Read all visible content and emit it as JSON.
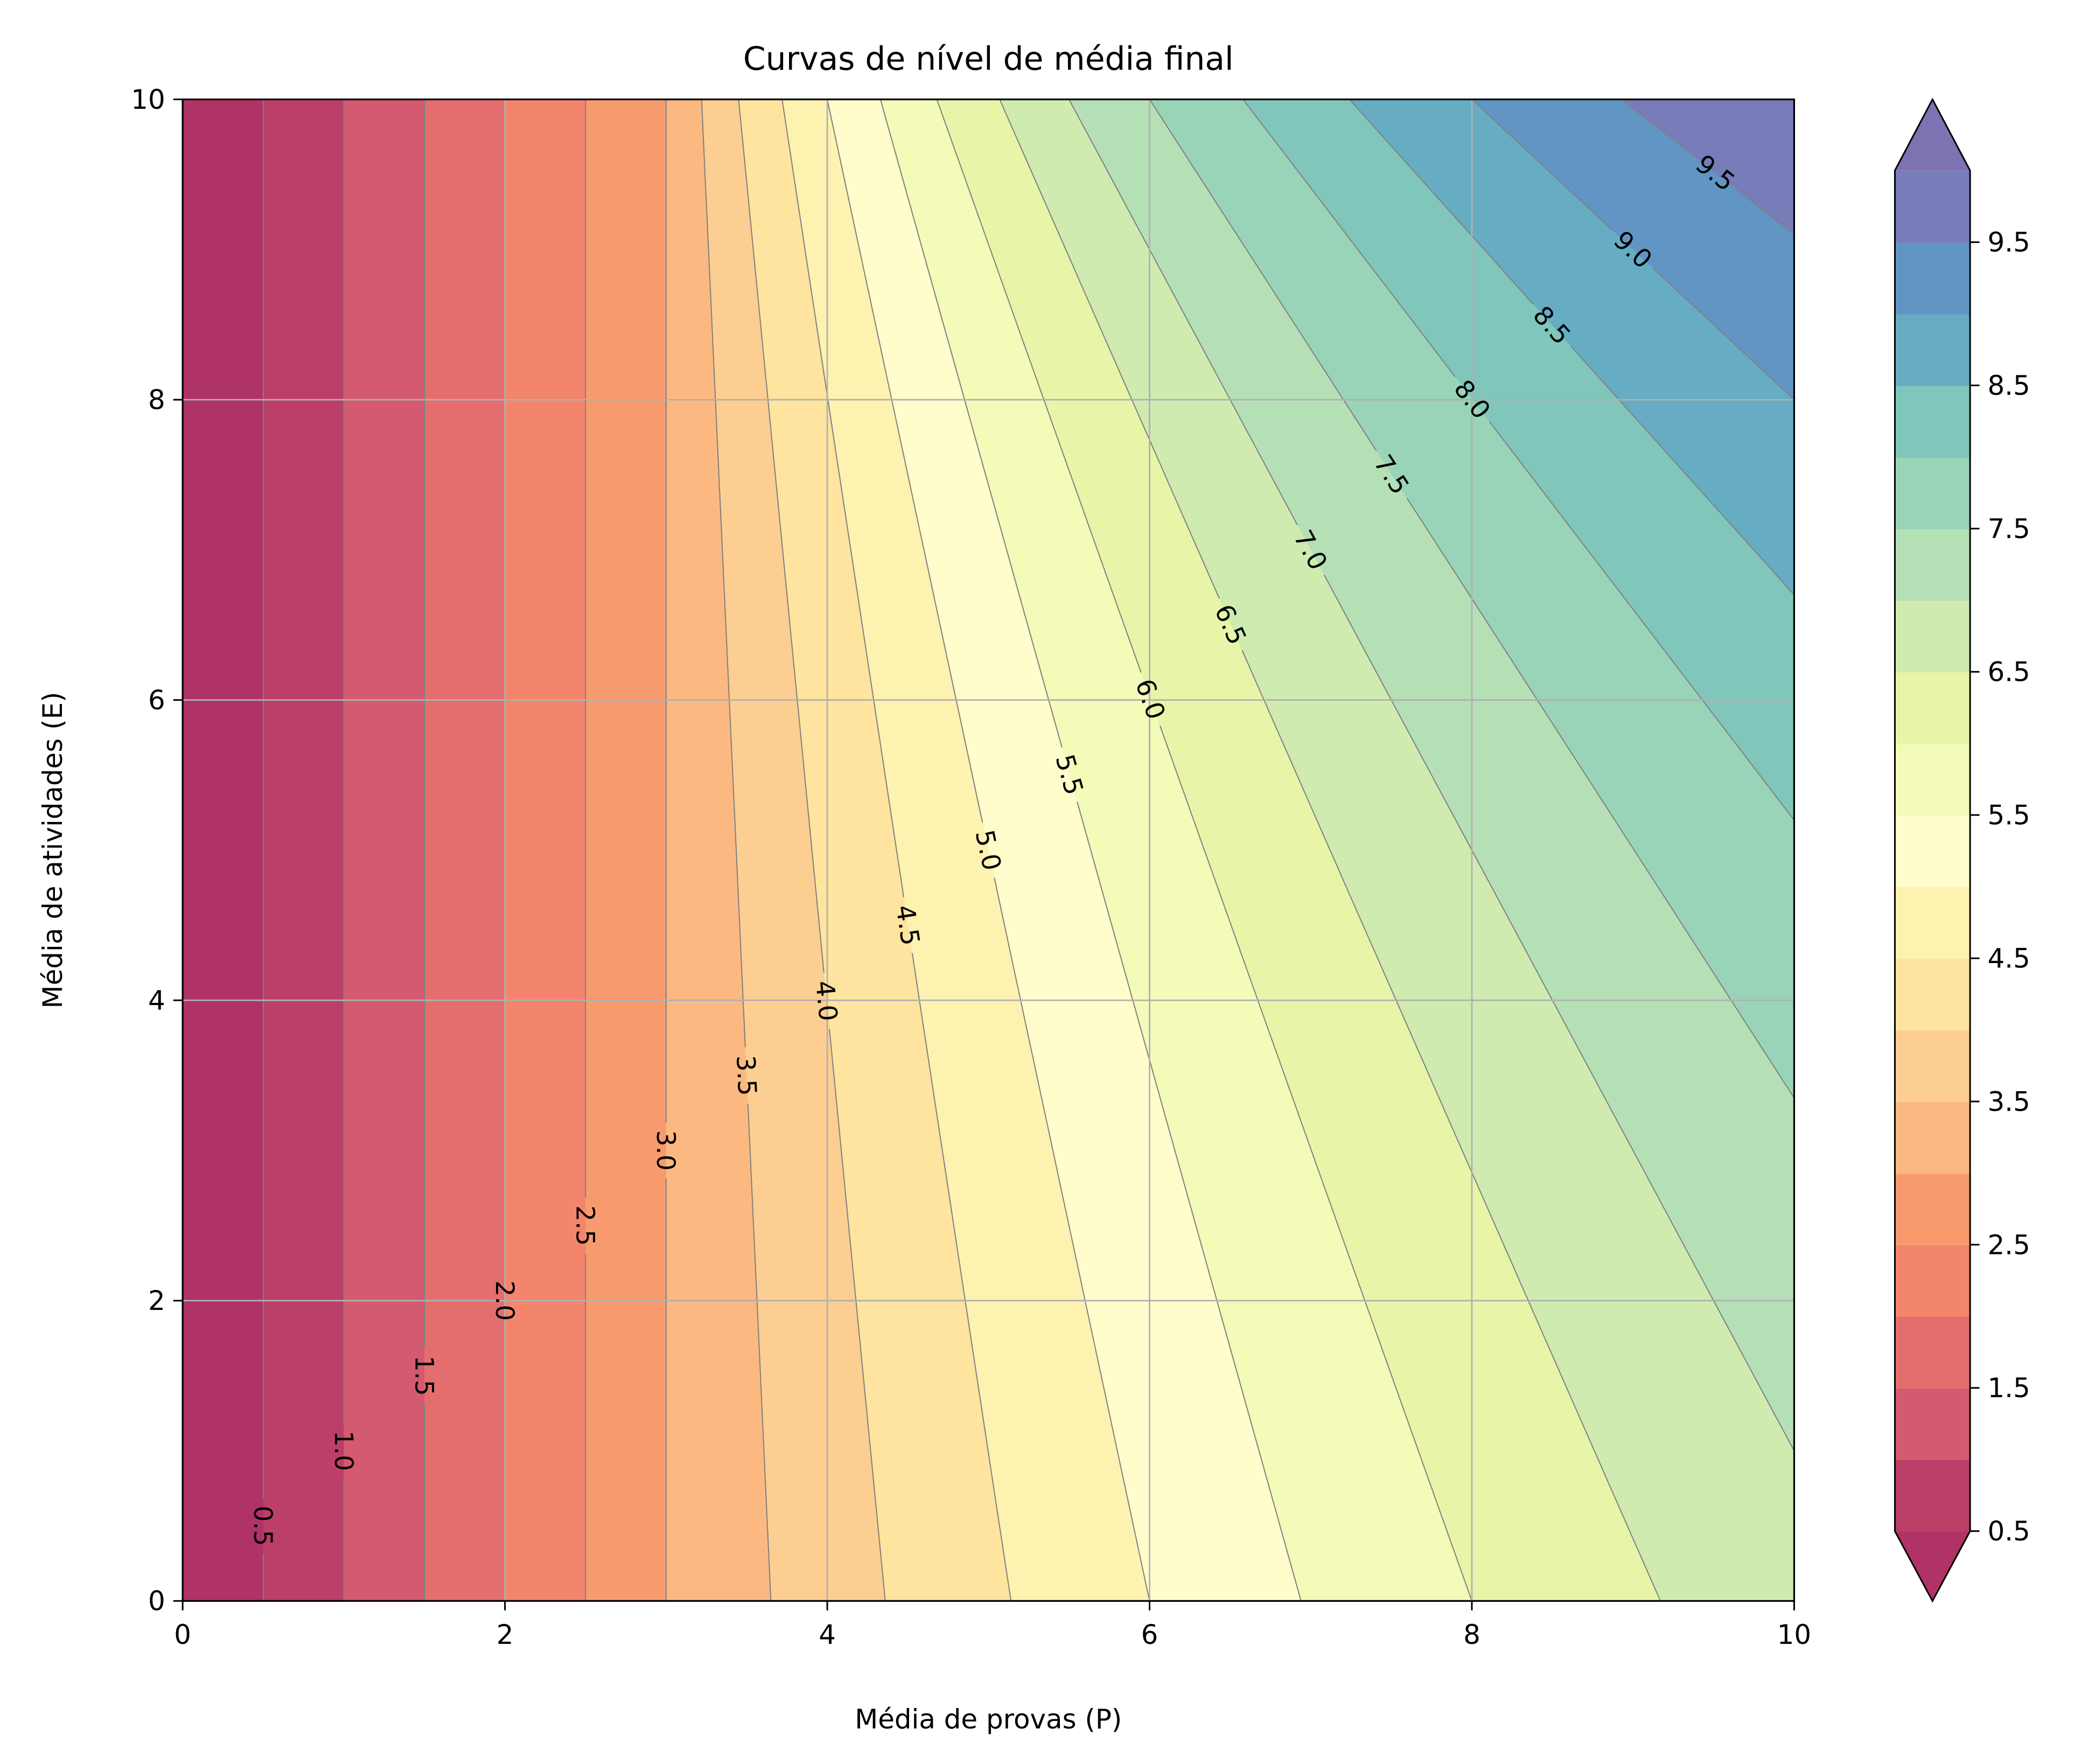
{
  "chart_data": {
    "type": "contour",
    "title": "Curvas de nível de média final",
    "xlabel": "Média de provas (P)",
    "ylabel": "Média de atividades (E)",
    "xlim": [
      0,
      10
    ],
    "ylim": [
      0,
      10
    ],
    "xticks": [
      0,
      2,
      4,
      6,
      8,
      10
    ],
    "yticks": [
      0,
      2,
      4,
      6,
      8,
      10
    ],
    "grid": true,
    "levels": [
      0.5,
      1.0,
      1.5,
      2.0,
      2.5,
      3.0,
      3.5,
      4.0,
      4.5,
      5.0,
      5.5,
      6.0,
      6.5,
      7.0,
      7.5,
      8.0,
      8.5,
      9.0,
      9.5,
      10.0
    ],
    "contour_lines": [
      {
        "level": 0.5,
        "label": "0.5",
        "from": [
          0.5,
          0
        ],
        "to": [
          0.5,
          10
        ]
      },
      {
        "level": 1.0,
        "label": "1.0",
        "from": [
          1.0,
          0
        ],
        "to": [
          1.0,
          10
        ]
      },
      {
        "level": 1.5,
        "label": "1.5",
        "from": [
          1.5,
          0
        ],
        "to": [
          1.5,
          10
        ]
      },
      {
        "level": 2.0,
        "label": "2.0",
        "from": [
          2.0,
          0
        ],
        "to": [
          2.0,
          10
        ]
      },
      {
        "level": 2.5,
        "label": "2.5",
        "from": [
          2.5,
          0
        ],
        "to": [
          2.5,
          10
        ]
      },
      {
        "level": 3.0,
        "label": "3.0",
        "from": [
          3.0,
          0
        ],
        "to": [
          3.0,
          10
        ]
      },
      {
        "level": 3.5,
        "label": "3.5",
        "from": [
          3.65,
          0
        ],
        "to": [
          3.22,
          10
        ]
      },
      {
        "level": 4.0,
        "label": "4.0",
        "from": [
          4.36,
          0
        ],
        "to": [
          3.45,
          10
        ]
      },
      {
        "level": 4.5,
        "label": "4.5",
        "from": [
          5.14,
          0
        ],
        "to": [
          3.72,
          10
        ]
      },
      {
        "level": 5.0,
        "label": "5.0",
        "from": [
          6.0,
          0
        ],
        "to": [
          4.0,
          10
        ]
      },
      {
        "level": 5.5,
        "label": "5.5",
        "from": [
          6.94,
          0
        ],
        "to": [
          4.33,
          10
        ]
      },
      {
        "level": 6.0,
        "label": "6.0",
        "from": [
          8.0,
          0
        ],
        "to": [
          4.68,
          10
        ]
      },
      {
        "level": 6.5,
        "label": "6.5",
        "from": [
          9.17,
          0
        ],
        "to": [
          5.07,
          10
        ]
      },
      {
        "level": 7.0,
        "label": "7.0",
        "from": [
          10,
          1.0
        ],
        "to": [
          5.5,
          10
        ]
      },
      {
        "level": 7.5,
        "label": "7.5",
        "from": [
          10,
          3.35
        ],
        "to": [
          6.0,
          10
        ]
      },
      {
        "level": 8.0,
        "label": "8.0",
        "from": [
          10,
          5.2
        ],
        "to": [
          6.58,
          10
        ]
      },
      {
        "level": 8.5,
        "label": "8.5",
        "from": [
          10,
          6.7
        ],
        "to": [
          7.24,
          10
        ]
      },
      {
        "level": 9.0,
        "label": "9.0",
        "from": [
          10,
          8.0
        ],
        "to": [
          8.0,
          10
        ]
      },
      {
        "level": 9.5,
        "label": "9.5",
        "from": [
          10,
          9.1
        ],
        "to": [
          8.93,
          10
        ]
      }
    ],
    "under_color": "#b03366",
    "over_color": "#7f72b3",
    "band_colors": [
      "#bc3f69",
      "#d35a6f",
      "#e46e6d",
      "#f2856c",
      "#f79b6e",
      "#fbb981",
      "#fcce91",
      "#fee49e",
      "#fef2b1",
      "#fefdcb",
      "#f4fab8",
      "#e8f5a8",
      "#d0ebb0",
      "#b5e0b6",
      "#9ad4b8",
      "#80c6ba",
      "#66adc3",
      "#6195c3",
      "#787cb9"
    ],
    "line_color": "#808080",
    "grid_color": "#b0b0b0",
    "colorbar": {
      "extend": "both",
      "ticks": [
        0.5,
        1.5,
        2.5,
        3.5,
        4.5,
        5.5,
        6.5,
        7.5,
        8.5,
        9.5
      ],
      "tick_labels": [
        "0.5",
        "1.5",
        "2.5",
        "3.5",
        "4.5",
        "5.5",
        "6.5",
        "7.5",
        "8.5",
        "9.5"
      ]
    },
    "xtick_labels": [
      "0",
      "2",
      "4",
      "6",
      "8",
      "10"
    ],
    "ytick_labels": [
      "0",
      "2",
      "4",
      "6",
      "8",
      "10"
    ]
  }
}
